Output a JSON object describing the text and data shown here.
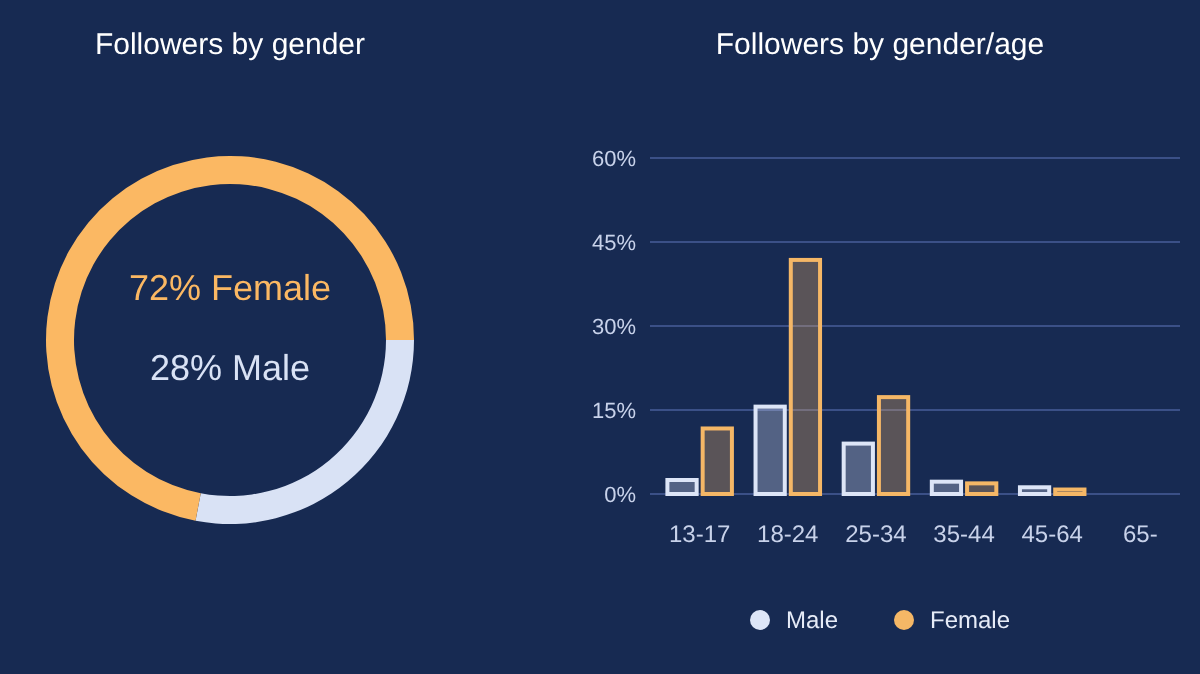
{
  "chart_data": [
    {
      "type": "donut",
      "title": "Followers by gender",
      "categories": [
        "28% Male",
        "72% Female"
      ],
      "values": [
        28,
        72
      ],
      "colors": [
        "#d9e2f5",
        "#fbb863"
      ]
    },
    {
      "type": "bar",
      "title": "Followers by gender/age",
      "categories": [
        "13-17",
        "18-24",
        "25-34",
        "35-44",
        "45-64",
        "65-"
      ],
      "series": [
        {
          "name": "Male",
          "color": "#dde5f7",
          "values": [
            2.5,
            15.6,
            9,
            2.2,
            1.2,
            0
          ]
        },
        {
          "name": "Female",
          "color": "#f5b766",
          "values": [
            11.7,
            41.8,
            17.3,
            1.9,
            0.8,
            0
          ]
        }
      ],
      "ylim": [
        0,
        60
      ],
      "yticks": [
        {
          "value": 0,
          "label": "0%"
        },
        {
          "value": 15,
          "label": "15%"
        },
        {
          "value": 30,
          "label": "30%"
        },
        {
          "value": 45,
          "label": "45%"
        },
        {
          "value": 60,
          "label": "60%"
        }
      ],
      "grid": "y",
      "legend": "bottom"
    }
  ]
}
